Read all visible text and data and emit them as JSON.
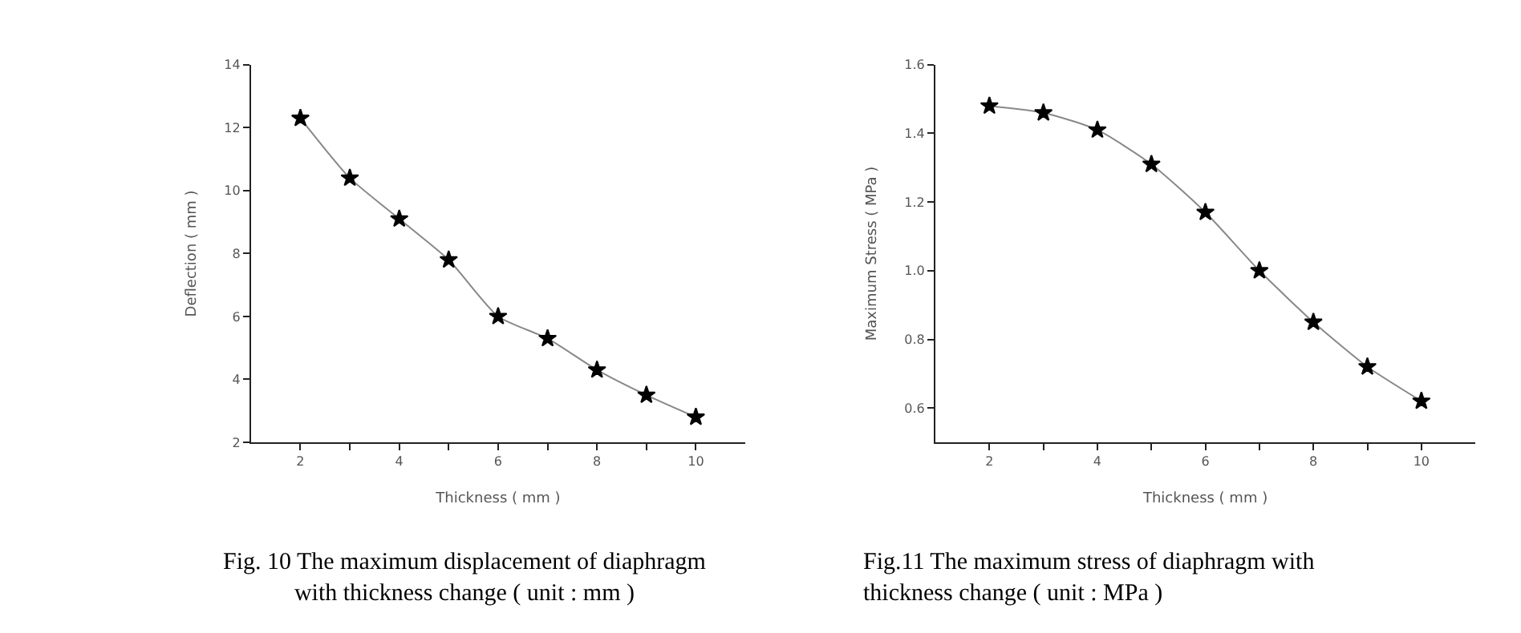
{
  "chart_data": [
    {
      "type": "line",
      "title": "Fig. 10 The maximum displacement of diaphragm\nwith thickness change ( unit : mm )",
      "xlabel": "Thickness ( mm )",
      "ylabel": "Deflection ( mm )",
      "x": [
        2,
        3,
        4,
        5,
        6,
        7,
        8,
        9,
        10
      ],
      "series": [
        {
          "color": "#000000",
          "values": [
            12.3,
            10.4,
            9.1,
            7.8,
            6.0,
            5.3,
            4.3,
            3.5,
            2.8
          ]
        }
      ],
      "xlim": [
        1,
        11
      ],
      "xticks": [
        2,
        {
          "value": 3,
          "label": null
        },
        4,
        {
          "value": 5,
          "label": null
        },
        6,
        {
          "value": 7,
          "label": null
        },
        8,
        {
          "value": 9,
          "label": null
        },
        10
      ],
      "ylim": [
        2,
        14
      ],
      "yticks": [
        2,
        4,
        6,
        8,
        10,
        12,
        14
      ],
      "marker": "star",
      "line_style": "solid"
    },
    {
      "type": "line",
      "title": "Fig.11 The maximum stress of diaphragm with\nthickness change ( unit : MPa )",
      "xlabel": "Thickness ( mm )",
      "ylabel": "Maximum Stress ( MPa )",
      "x": [
        2,
        3,
        4,
        5,
        6,
        7,
        8,
        9,
        10
      ],
      "series": [
        {
          "color": "#000000",
          "values": [
            1.48,
            1.46,
            1.41,
            1.31,
            1.17,
            1.0,
            0.85,
            0.72,
            0.62
          ]
        }
      ],
      "xlim": [
        1,
        11
      ],
      "xticks": [
        2,
        {
          "value": 3,
          "label": null
        },
        4,
        {
          "value": 5,
          "label": null
        },
        6,
        {
          "value": 7,
          "label": null
        },
        8,
        {
          "value": 9,
          "label": null
        },
        10
      ],
      "ylim": [
        0.5,
        1.6
      ],
      "yticks": [
        0.6,
        0.8,
        {
          "value": 1.0,
          "label": "1.0"
        },
        1.2,
        1.4,
        1.6
      ],
      "marker": "star",
      "line_style": "solid"
    }
  ]
}
